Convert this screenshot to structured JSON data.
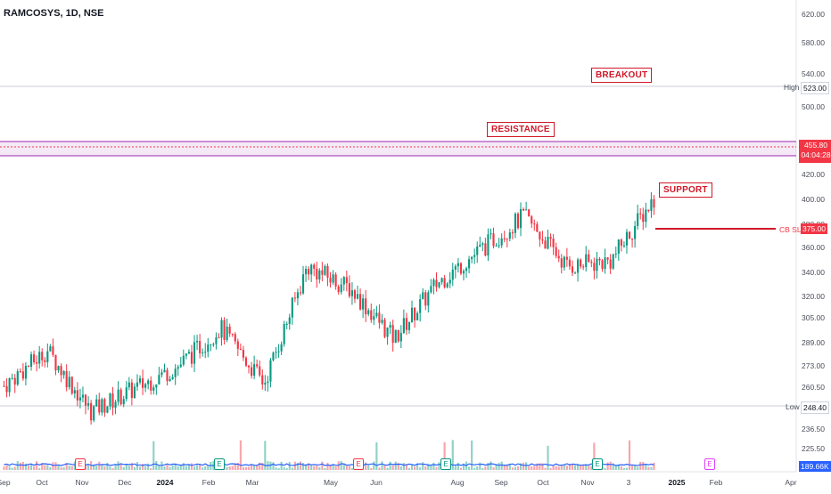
{
  "symbol": "RAMCOSYS, 1D, NSE",
  "annotations": {
    "breakout": "BREAKOUT",
    "resistance": "RESISTANCE",
    "support": "SUPPORT"
  },
  "price_axis": [
    "620.00",
    "580.00",
    "540.00",
    "500.00",
    "440.00",
    "420.00",
    "400.00",
    "380.00",
    "360.00",
    "340.00",
    "320.00",
    "305.00",
    "289.00",
    "273.00",
    "260.50",
    "248.40",
    "236.50",
    "225.50"
  ],
  "date_axis": [
    {
      "label": "Sep",
      "strong": false
    },
    {
      "label": "Oct",
      "strong": false
    },
    {
      "label": "Nov",
      "strong": false
    },
    {
      "label": "Dec",
      "strong": false
    },
    {
      "label": "2024",
      "strong": true
    },
    {
      "label": "Feb",
      "strong": false
    },
    {
      "label": "Mar",
      "strong": false
    },
    {
      "label": "May",
      "strong": false
    },
    {
      "label": "Jun",
      "strong": false
    },
    {
      "label": "Aug",
      "strong": false
    },
    {
      "label": "Sep",
      "strong": false
    },
    {
      "label": "Oct",
      "strong": false
    },
    {
      "label": "Nov",
      "strong": false
    },
    {
      "label": "3",
      "strong": false
    },
    {
      "label": "2025",
      "strong": true
    },
    {
      "label": "Feb",
      "strong": false
    },
    {
      "label": "Apr",
      "strong": false
    }
  ],
  "tags": {
    "high_label": "High",
    "high_value": "523.00",
    "low_label": "Low",
    "low_value": "248.40",
    "last_price": "455.80",
    "countdown": "04:04:28",
    "cbsl_label": "CB SL",
    "cbsl_value": "375.00",
    "volume": "189.66K"
  },
  "earnings_markers": [
    {
      "label": "E",
      "color": "red"
    },
    {
      "label": "E",
      "color": "green"
    },
    {
      "label": "E",
      "color": "red"
    },
    {
      "label": "E",
      "color": "green"
    },
    {
      "label": "E",
      "color": "green"
    },
    {
      "label": "E",
      "color": "pink"
    }
  ],
  "colors": {
    "up": "#089981",
    "down": "#f23645",
    "resistance_band": "#9c27b0",
    "cbsl_line": "#d01828",
    "volume_line": "#2962ff"
  },
  "chart_data": {
    "type": "candlestick",
    "ylim": [
      215,
      630
    ],
    "resistance_zone": [
      447,
      460
    ],
    "cb_sl": 375,
    "high": 523,
    "low": 248.4,
    "x": [
      "2023-09",
      "2023-10",
      "2023-11",
      "2023-12",
      "2024-01",
      "2024-02",
      "2024-03",
      "2024-04",
      "2024-05",
      "2024-06",
      "2024-07",
      "2024-08",
      "2024-09",
      "2024-10",
      "2024-11",
      "2024-12"
    ],
    "close": [
      288,
      320,
      265,
      285,
      305,
      340,
      290,
      395,
      375,
      330,
      380,
      410,
      440,
      395,
      400,
      456
    ]
  }
}
